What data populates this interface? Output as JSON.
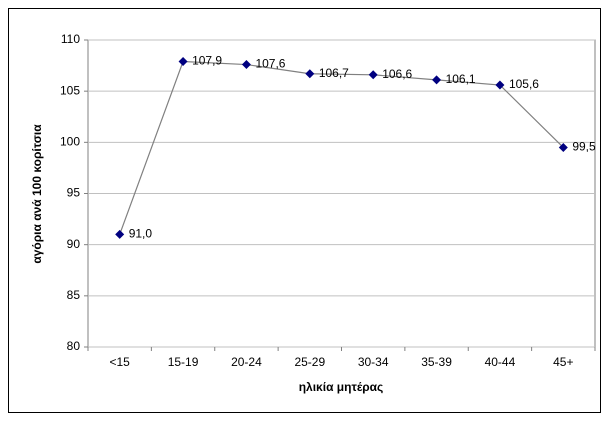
{
  "chart_data": {
    "type": "line",
    "x_label": "ηλικία μητέρας",
    "y_label": "αγόρια ανά 100 κορίτσια",
    "categories": [
      "<15",
      "15-19",
      "20-24",
      "25-29",
      "30-34",
      "35-39",
      "40-44",
      "45+"
    ],
    "values": [
      91.0,
      107.9,
      107.6,
      106.7,
      106.6,
      106.1,
      105.6,
      99.5
    ],
    "value_labels": [
      "91,0",
      "107,9",
      "107,6",
      "106,7",
      "106,6",
      "106,1",
      "105,6",
      "99,5"
    ],
    "line_color": "#808080",
    "marker_color": "#000080",
    "ylim": [
      80,
      110
    ],
    "yticks": [
      80,
      85,
      90,
      95,
      100,
      105,
      110
    ],
    "grid": true
  }
}
